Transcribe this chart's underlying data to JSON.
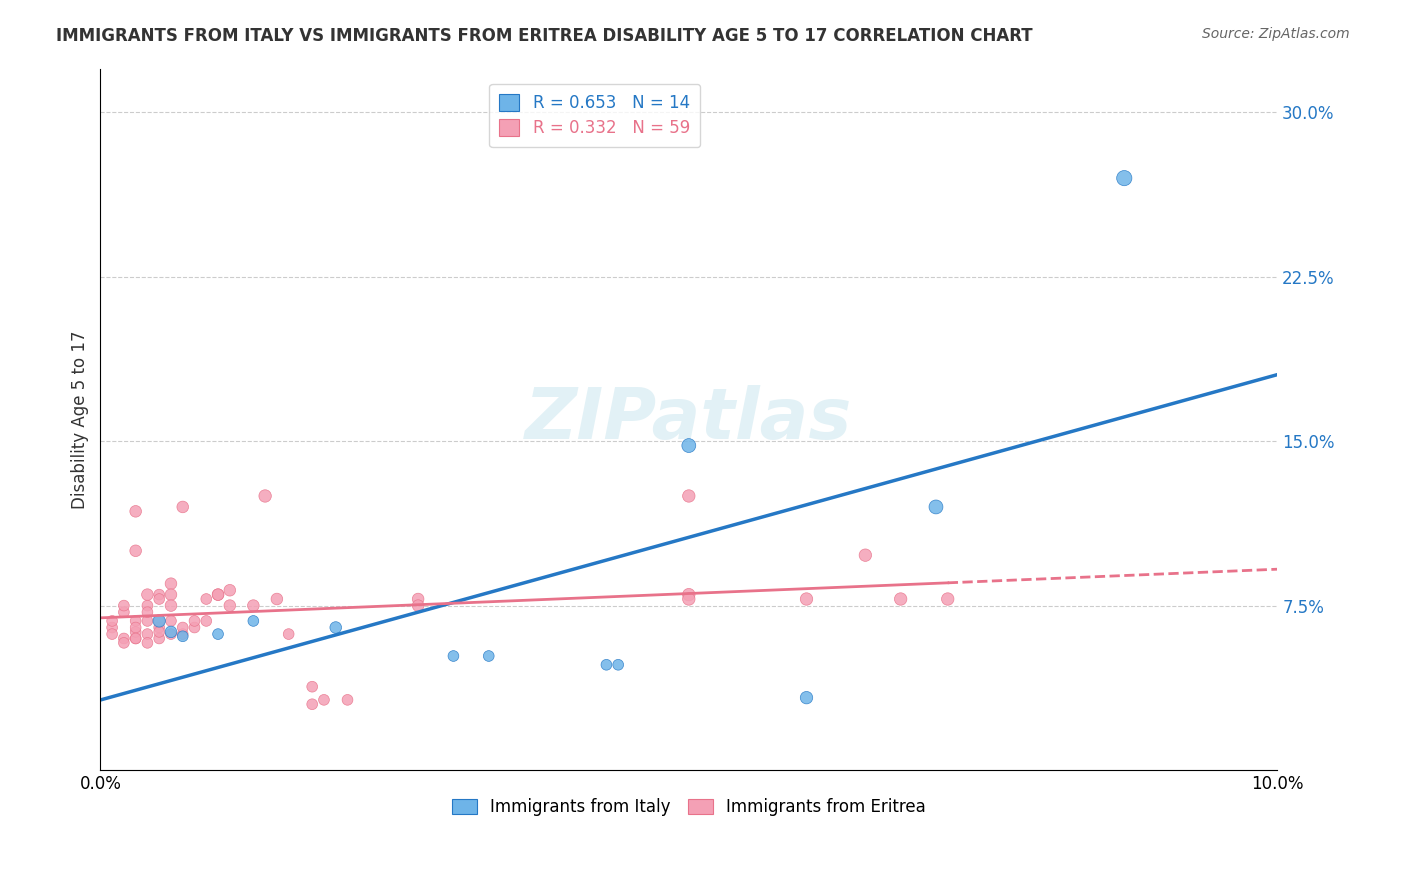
{
  "title": "IMMIGRANTS FROM ITALY VS IMMIGRANTS FROM ERITREA DISABILITY AGE 5 TO 17 CORRELATION CHART",
  "source": "Source: ZipAtlas.com",
  "xlabel_bottom": "",
  "ylabel": "Disability Age 5 to 17",
  "xlim": [
    0.0,
    0.1
  ],
  "ylim": [
    0.0,
    0.32
  ],
  "xticks": [
    0.0,
    0.02,
    0.04,
    0.06,
    0.08,
    0.1
  ],
  "xticklabels": [
    "0.0%",
    "",
    "",
    "",
    "",
    "10.0%"
  ],
  "yticks_right": [
    0.075,
    0.15,
    0.225,
    0.3
  ],
  "ytick_labels_right": [
    "7.5%",
    "15.0%",
    "22.5%",
    "30.0%"
  ],
  "italy_R": 0.653,
  "italy_N": 14,
  "eritrea_R": 0.332,
  "eritrea_N": 59,
  "italy_color": "#6eb4e8",
  "eritrea_color": "#f4a0b5",
  "italy_line_color": "#2578c5",
  "eritrea_line_color": "#e8728a",
  "legend_labels": [
    "Immigrants from Italy",
    "Immigrants from Eritrea"
  ],
  "watermark": "ZIPatlas",
  "italy_points": [
    [
      0.005,
      0.068
    ],
    [
      0.006,
      0.063
    ],
    [
      0.007,
      0.061
    ],
    [
      0.01,
      0.062
    ],
    [
      0.013,
      0.068
    ],
    [
      0.02,
      0.065
    ],
    [
      0.03,
      0.052
    ],
    [
      0.033,
      0.052
    ],
    [
      0.043,
      0.048
    ],
    [
      0.044,
      0.048
    ],
    [
      0.05,
      0.148
    ],
    [
      0.06,
      0.033
    ],
    [
      0.071,
      0.12
    ],
    [
      0.087,
      0.27
    ]
  ],
  "eritrea_points": [
    [
      0.001,
      0.065
    ],
    [
      0.001,
      0.062
    ],
    [
      0.001,
      0.068
    ],
    [
      0.002,
      0.06
    ],
    [
      0.002,
      0.058
    ],
    [
      0.002,
      0.072
    ],
    [
      0.002,
      0.075
    ],
    [
      0.003,
      0.06
    ],
    [
      0.003,
      0.063
    ],
    [
      0.003,
      0.068
    ],
    [
      0.003,
      0.065
    ],
    [
      0.003,
      0.06
    ],
    [
      0.003,
      0.118
    ],
    [
      0.003,
      0.1
    ],
    [
      0.004,
      0.068
    ],
    [
      0.004,
      0.062
    ],
    [
      0.004,
      0.08
    ],
    [
      0.004,
      0.058
    ],
    [
      0.004,
      0.075
    ],
    [
      0.004,
      0.072
    ],
    [
      0.005,
      0.065
    ],
    [
      0.005,
      0.06
    ],
    [
      0.005,
      0.08
    ],
    [
      0.005,
      0.068
    ],
    [
      0.005,
      0.078
    ],
    [
      0.005,
      0.063
    ],
    [
      0.006,
      0.085
    ],
    [
      0.006,
      0.08
    ],
    [
      0.006,
      0.075
    ],
    [
      0.006,
      0.068
    ],
    [
      0.006,
      0.062
    ],
    [
      0.007,
      0.062
    ],
    [
      0.007,
      0.065
    ],
    [
      0.007,
      0.12
    ],
    [
      0.008,
      0.065
    ],
    [
      0.008,
      0.068
    ],
    [
      0.009,
      0.068
    ],
    [
      0.009,
      0.078
    ],
    [
      0.01,
      0.08
    ],
    [
      0.01,
      0.08
    ],
    [
      0.011,
      0.082
    ],
    [
      0.011,
      0.075
    ],
    [
      0.013,
      0.075
    ],
    [
      0.014,
      0.125
    ],
    [
      0.015,
      0.078
    ],
    [
      0.016,
      0.062
    ],
    [
      0.018,
      0.03
    ],
    [
      0.018,
      0.038
    ],
    [
      0.019,
      0.032
    ],
    [
      0.021,
      0.032
    ],
    [
      0.027,
      0.078
    ],
    [
      0.027,
      0.075
    ],
    [
      0.05,
      0.125
    ],
    [
      0.05,
      0.08
    ],
    [
      0.05,
      0.078
    ],
    [
      0.06,
      0.078
    ],
    [
      0.065,
      0.098
    ],
    [
      0.068,
      0.078
    ],
    [
      0.072,
      0.078
    ]
  ],
  "italy_marker_sizes": [
    80,
    70,
    60,
    60,
    60,
    70,
    60,
    60,
    60,
    60,
    100,
    80,
    100,
    120
  ],
  "eritrea_marker_sizes": [
    60,
    60,
    60,
    60,
    60,
    60,
    60,
    60,
    60,
    60,
    60,
    60,
    70,
    70,
    60,
    60,
    70,
    60,
    60,
    60,
    60,
    60,
    60,
    60,
    60,
    60,
    70,
    70,
    70,
    60,
    60,
    60,
    60,
    70,
    60,
    60,
    60,
    60,
    70,
    70,
    70,
    70,
    70,
    80,
    70,
    60,
    60,
    60,
    60,
    60,
    70,
    70,
    80,
    80,
    80,
    80,
    80,
    80,
    80
  ]
}
